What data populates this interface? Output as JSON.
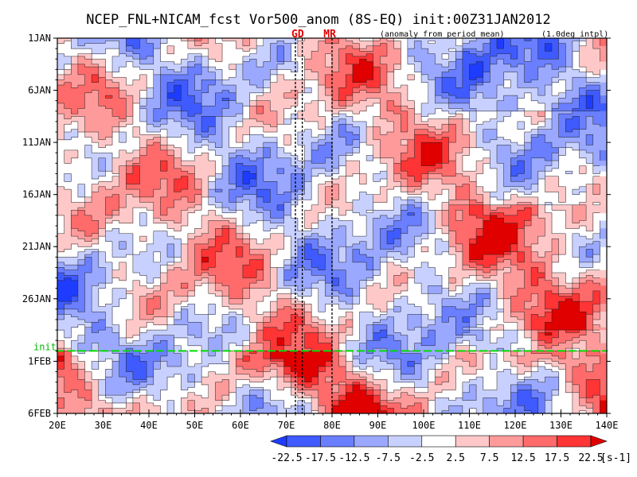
{
  "chart_data": {
    "type": "heatmap",
    "title": "NCEP_FNL+NICAM_fcst Vor500_anom (8S-EQ) init:00Z31JAN2012",
    "subtitle_left": "(anomaly from period mean)",
    "subtitle_right": "(1.0deg intpl)",
    "xlabel": "",
    "ylabel": "",
    "x_axis": {
      "range": [
        20,
        140
      ],
      "ticks": [
        20,
        30,
        40,
        50,
        60,
        70,
        80,
        90,
        100,
        110,
        120,
        130,
        140
      ],
      "tick_labels": [
        "20E",
        "30E",
        "40E",
        "50E",
        "60E",
        "70E",
        "80E",
        "90E",
        "100E",
        "110E",
        "120E",
        "130E",
        "140E"
      ]
    },
    "y_axis": {
      "direction": "time increasing downward",
      "range_days": [
        1,
        37
      ],
      "ticks": [
        1,
        6,
        11,
        16,
        21,
        26,
        32,
        37
      ],
      "tick_labels": [
        "1JAN",
        "6JAN",
        "11JAN",
        "16JAN",
        "21JAN",
        "26JAN",
        "1FEB",
        "6FEB"
      ]
    },
    "init_line": {
      "label": "init",
      "day": 31.0,
      "color": "#00e000"
    },
    "station_markers": [
      {
        "label": "GD",
        "lon": 72.5,
        "line_lons": [
          72.0,
          73.5
        ]
      },
      {
        "label": "MR",
        "lon": 79.5,
        "line_lons": [
          80.0
        ]
      }
    ],
    "colorbar": {
      "unit": "[s-1]",
      "levels": [
        -22.5,
        -17.5,
        -12.5,
        -7.5,
        -2.5,
        2.5,
        7.5,
        12.5,
        17.5,
        22.5
      ],
      "level_labels": [
        "-22.5",
        "-17.5",
        "-12.5",
        "-7.5",
        "-2.5",
        "2.5",
        "7.5",
        "12.5",
        "17.5",
        "22.5"
      ],
      "colors": [
        "#1e3cff",
        "#3f5bff",
        "#6a7fff",
        "#9aa8ff",
        "#c8d0ff",
        "#ffffff",
        "#ffc8c8",
        "#ff9a9a",
        "#ff6a6a",
        "#ff3434",
        "#e00000"
      ]
    },
    "field_description": "Hovmoller of 500hPa vorticity anomaly; red positive, blue negative, bands tilting eastward with time"
  }
}
